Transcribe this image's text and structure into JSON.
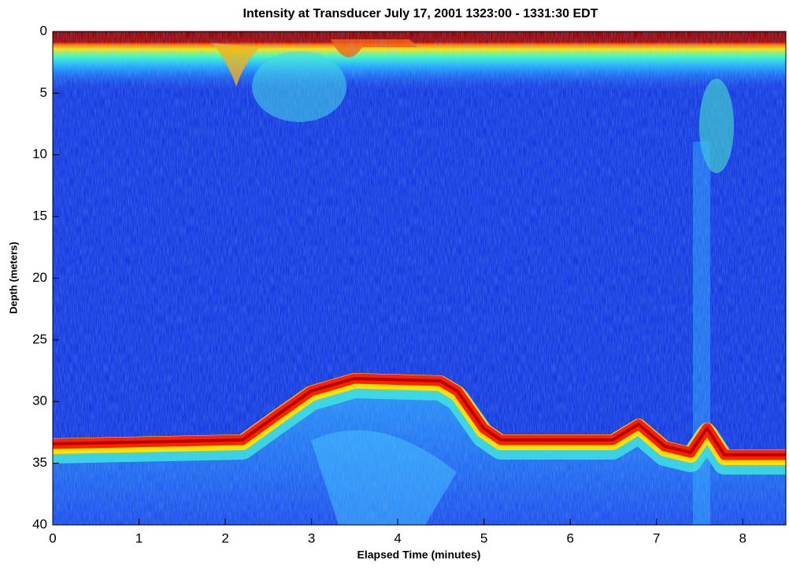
{
  "chart_data": {
    "type": "heatmap",
    "title": "Intensity at Transducer  July 17, 2001 1323:00 - 1331:30 EDT",
    "xlabel": "Elapsed Time (minutes)",
    "ylabel": "Depth (meters)",
    "xlim": [
      0,
      8.5
    ],
    "xticks": [
      0,
      1,
      2,
      3,
      4,
      5,
      6,
      7,
      8
    ],
    "ylim": [
      40,
      0
    ],
    "yticks": [
      0,
      5,
      10,
      15,
      20,
      25,
      30,
      35,
      40
    ]
  }
}
